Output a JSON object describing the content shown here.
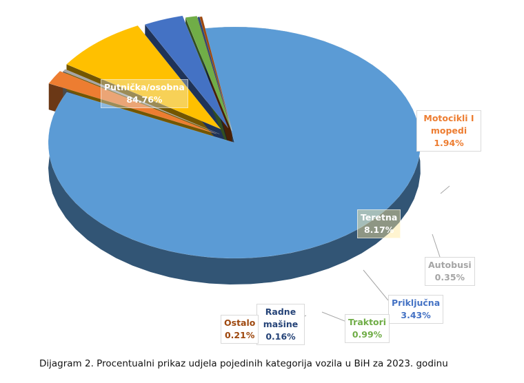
{
  "caption": "Dijagram 2. Procentualni prikaz udjela pojedinih kategorija vozila u BiH za 2023. godinu",
  "chart_data": {
    "type": "pie",
    "variant": "3d-exploded",
    "slices": [
      {
        "name": "Putnička/osobna",
        "value": 84.76,
        "label": "84.76%",
        "color": "#5B9BD5",
        "label_color": "#ffffff"
      },
      {
        "name": "Motocikli I mopedi",
        "value": 1.94,
        "label": "1.94%",
        "color": "#ED7D31",
        "label_color": "#ED7D31"
      },
      {
        "name": "Autobusi",
        "value": 0.35,
        "label": "0.35%",
        "color": "#A5A5A5",
        "label_color": "#A5A5A5"
      },
      {
        "name": "Teretna",
        "value": 8.17,
        "label": "8.17%",
        "color": "#FFC000",
        "label_color": "#ffffff"
      },
      {
        "name": "Priključna",
        "value": 3.43,
        "label": "3.43%",
        "color": "#4472C4",
        "label_color": "#4472C4"
      },
      {
        "name": "Traktori",
        "value": 0.99,
        "label": "0.99%",
        "color": "#70AD47",
        "label_color": "#70AD47"
      },
      {
        "name": "Radne mašine",
        "value": 0.16,
        "label": "0.16%",
        "color": "#264478",
        "label_color": "#264478"
      },
      {
        "name": "Ostalo",
        "value": 0.21,
        "label": "0.21%",
        "color": "#9E480E",
        "label_color": "#9E480E"
      }
    ]
  }
}
